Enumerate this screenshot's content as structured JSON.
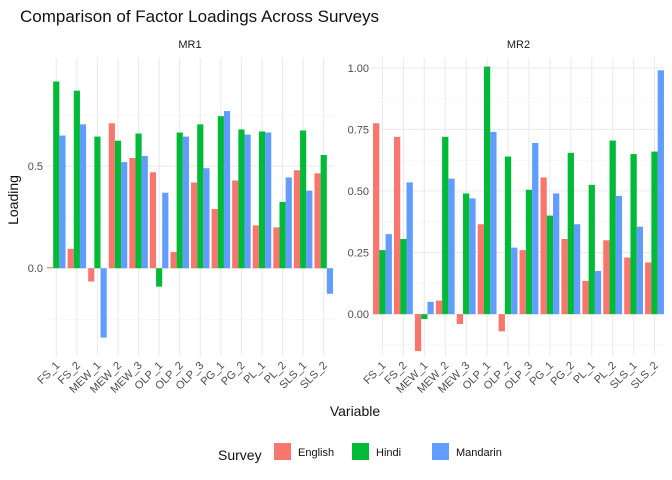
{
  "chart_data": {
    "type": "bar",
    "title": "Comparison of Factor Loadings Across Surveys",
    "xlabel": "Variable",
    "ylabel": "Loading",
    "legend": {
      "title": "Survey",
      "position": "bottom"
    },
    "series_colors": {
      "English": "#F8766D",
      "Hindi": "#00BA38",
      "Mandarin": "#619CFF"
    },
    "panels": [
      {
        "name": "MR1",
        "ylim": [
          -0.43,
          1.03
        ],
        "yticks": [
          0.0,
          0.5
        ],
        "ytick_labels": [
          "0.0",
          "0.5"
        ],
        "categories": [
          "FS_1",
          "FS_2",
          "MEW_1",
          "MEW_2",
          "MEW_3",
          "OLP_1",
          "OLP_2",
          "OLP_3",
          "PG_1",
          "PG_2",
          "PL_1",
          "PL_2",
          "SLS_1",
          "SLS_2"
        ],
        "series": [
          {
            "name": "English",
            "values": [
              0.005,
              0.095,
              -0.065,
              0.71,
              0.54,
              0.47,
              0.08,
              0.42,
              0.29,
              0.43,
              0.21,
              0.2,
              0.48,
              0.465
            ]
          },
          {
            "name": "Hindi",
            "values": [
              0.915,
              0.87,
              0.645,
              0.625,
              0.66,
              -0.09,
              0.665,
              0.705,
              0.745,
              0.68,
              0.67,
              0.325,
              0.675,
              0.555
            ]
          },
          {
            "name": "Mandarin",
            "values": [
              0.65,
              0.705,
              -0.34,
              0.52,
              0.55,
              0.37,
              0.645,
              0.49,
              0.77,
              0.655,
              0.665,
              0.445,
              0.38,
              -0.125
            ]
          }
        ]
      },
      {
        "name": "MR2",
        "ylim": [
          -0.17,
          1.04
        ],
        "yticks": [
          0.0,
          0.25,
          0.5,
          0.75,
          1.0
        ],
        "ytick_labels": [
          "0.00",
          "0.25",
          "0.50",
          "0.75",
          "1.00"
        ],
        "categories": [
          "FS_1",
          "FS_2",
          "MEW_1",
          "MEW_2",
          "MEW_3",
          "OLP_1",
          "OLP_2",
          "OLP_3",
          "PG_1",
          "PG_2",
          "PL_1",
          "PL_2",
          "SLS_1",
          "SLS_2"
        ],
        "series": [
          {
            "name": "English",
            "values": [
              0.775,
              0.72,
              -0.15,
              0.055,
              -0.04,
              0.365,
              -0.07,
              0.26,
              0.555,
              0.305,
              0.135,
              0.3,
              0.23,
              0.21
            ]
          },
          {
            "name": "Hindi",
            "values": [
              0.26,
              0.305,
              -0.02,
              0.72,
              0.49,
              1.005,
              0.64,
              0.505,
              0.4,
              0.655,
              0.525,
              0.705,
              0.65,
              0.66
            ]
          },
          {
            "name": "Mandarin",
            "values": [
              0.325,
              0.535,
              0.05,
              0.55,
              0.47,
              0.74,
              0.27,
              0.695,
              0.49,
              0.365,
              0.175,
              0.48,
              0.355,
              0.99
            ]
          }
        ]
      }
    ]
  }
}
